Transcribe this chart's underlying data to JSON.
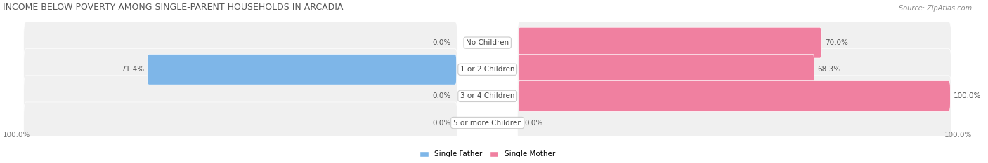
{
  "title": "INCOME BELOW POVERTY AMONG SINGLE-PARENT HOUSEHOLDS IN ARCADIA",
  "source": "Source: ZipAtlas.com",
  "categories": [
    "No Children",
    "1 or 2 Children",
    "3 or 4 Children",
    "5 or more Children"
  ],
  "single_father": [
    0.0,
    71.4,
    0.0,
    0.0
  ],
  "single_mother": [
    70.0,
    68.3,
    100.0,
    0.0
  ],
  "color_father": "#7EB6E8",
  "color_mother": "#F080A0",
  "color_father_light": "#C5DCF5",
  "color_mother_light": "#F8C0D0",
  "bar_bg": "#F0F0F0",
  "max_val": 100.0,
  "legend_father": "Single Father",
  "legend_mother": "Single Mother",
  "axis_left_label": "100.0%",
  "axis_right_label": "100.0%",
  "title_fontsize": 9,
  "source_fontsize": 7,
  "label_fontsize": 7.5,
  "category_fontsize": 7.5
}
